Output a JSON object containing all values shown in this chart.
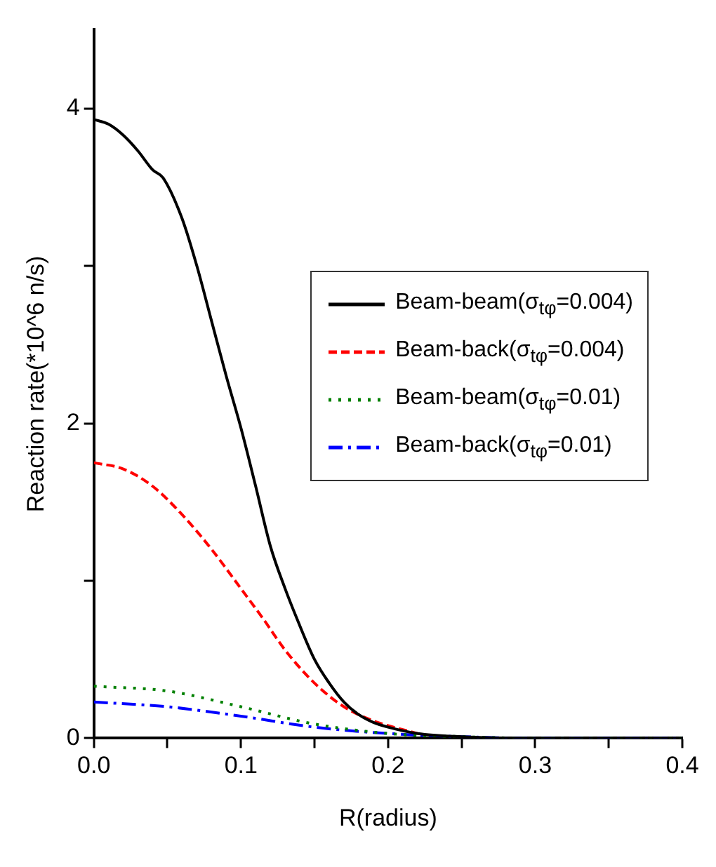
{
  "chart_data": {
    "type": "line",
    "xlabel": "R(radius)",
    "ylabel": "Reaction rate(*10^6 n/s)",
    "xlim": [
      0,
      0.4
    ],
    "ylim": [
      0,
      4.5
    ],
    "xticks": [
      {
        "value": 0,
        "label": "0.0"
      },
      {
        "value": 0.05,
        "label": null
      },
      0.1,
      {
        "value": 0.15,
        "label": null
      },
      0.2,
      {
        "value": 0.25,
        "label": null
      },
      0.3,
      {
        "value": 0.35,
        "label": null
      },
      0.4
    ],
    "yticks": [
      0,
      {
        "value": 1,
        "label": null
      },
      2,
      {
        "value": 3,
        "label": null
      },
      4
    ],
    "grid": false,
    "legend": "right",
    "marker": "none",
    "series": [
      {
        "name": "Beam-beam(σ$_{tφ}$=0.004)",
        "color": "#000000",
        "line_style": "solid",
        "x": [
          0,
          0.01,
          0.02,
          0.03,
          0.04,
          0.047,
          0.06,
          0.07,
          0.08,
          0.09,
          0.1,
          0.11,
          0.12,
          0.13,
          0.138,
          0.15,
          0.16,
          0.17,
          0.18,
          0.19,
          0.2,
          0.22,
          0.25,
          0.3,
          0.4
        ],
        "values": [
          3.93,
          3.9,
          3.83,
          3.73,
          3.61,
          3.56,
          3.3,
          3.0,
          2.65,
          2.3,
          1.97,
          1.6,
          1.22,
          0.95,
          0.76,
          0.5,
          0.35,
          0.23,
          0.15,
          0.1,
          0.07,
          0.03,
          0.01,
          0,
          0
        ]
      },
      {
        "name": "Beam-back(σ$_{tφ}$=0.004)",
        "color": "#ff0000",
        "line_style": "dashed",
        "x": [
          0,
          0.02,
          0.04,
          0.06,
          0.08,
          0.1,
          0.115,
          0.13,
          0.15,
          0.17,
          0.19,
          0.2,
          0.22
        ],
        "values": [
          1.75,
          1.71,
          1.6,
          1.42,
          1.2,
          0.95,
          0.76,
          0.56,
          0.35,
          0.2,
          0.11,
          0.08,
          0.03
        ]
      },
      {
        "name": "Beam-beam(σ$_{tφ}$=0.01)",
        "color": "#008000",
        "line_style": "dotted",
        "x": [
          0,
          0.05,
          0.1,
          0.15,
          0.2,
          0.25,
          0.3,
          0.4
        ],
        "values": [
          0.33,
          0.3,
          0.2,
          0.09,
          0.03,
          0.01,
          0,
          0
        ]
      },
      {
        "name": "Beam-back(σ$_{tφ}$=0.01)",
        "color": "#0000ff",
        "line_style": "dashdot",
        "x": [
          0,
          0.05,
          0.1,
          0.15,
          0.2,
          0.25,
          0.3,
          0.4
        ],
        "values": [
          0.23,
          0.2,
          0.14,
          0.07,
          0.03,
          0.01,
          0,
          0
        ]
      }
    ]
  }
}
